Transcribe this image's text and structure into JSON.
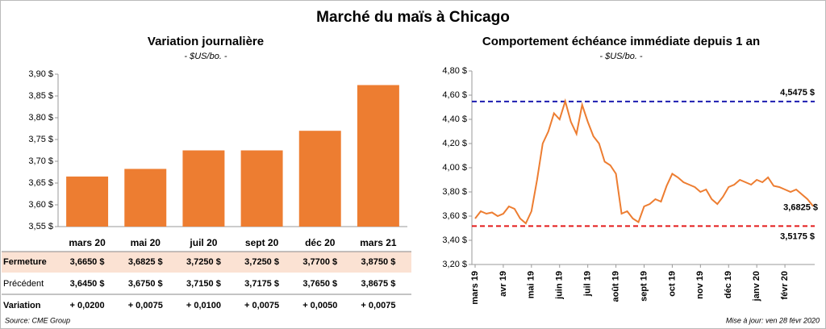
{
  "title": "Marché du maïs à Chicago",
  "chart_data": [
    {
      "type": "bar",
      "title": "Variation journalière",
      "subtitle": "- $US/bo. -",
      "categories": [
        "mars 20",
        "mai 20",
        "juil 20",
        "sept 20",
        "déc 20",
        "mars 21"
      ],
      "values": [
        3.665,
        3.6825,
        3.725,
        3.725,
        3.77,
        3.875
      ],
      "color": "#ed7d31",
      "ylim": [
        3.55,
        3.9
      ],
      "yticks": [
        {
          "value": 3.55,
          "label": "3,55 $"
        },
        {
          "value": 3.6,
          "label": "3,60 $"
        },
        {
          "value": 3.65,
          "label": "3,65 $"
        },
        {
          "value": 3.7,
          "label": "3,70 $"
        },
        {
          "value": 3.75,
          "label": "3,75 $"
        },
        {
          "value": 3.8,
          "label": "3,80 $"
        },
        {
          "value": 3.85,
          "label": "3,85 $"
        },
        {
          "value": 3.9,
          "label": "3,90 $"
        }
      ]
    },
    {
      "type": "line",
      "title": "Comportement  échéance immédiate depuis 1 an",
      "subtitle": "- $US/bo. -",
      "categories": [
        "mars 19",
        null,
        null,
        null,
        null,
        "avr 19",
        null,
        null,
        null,
        null,
        "mai 19",
        null,
        null,
        null,
        null,
        "juin 19",
        null,
        null,
        null,
        null,
        "juil 19",
        null,
        null,
        null,
        null,
        "août 19",
        null,
        null,
        null,
        null,
        "sept 19",
        null,
        null,
        null,
        null,
        "oct 19",
        null,
        null,
        null,
        null,
        "nov 19",
        null,
        null,
        null,
        null,
        "déc 19",
        null,
        null,
        null,
        null,
        "janv 20",
        null,
        null,
        null,
        null,
        "févr 20",
        null,
        null,
        null,
        null,
        null
      ],
      "values": [
        3.58,
        3.64,
        3.62,
        3.63,
        3.6,
        3.62,
        3.68,
        3.66,
        3.58,
        3.54,
        3.64,
        3.9,
        4.2,
        4.3,
        4.45,
        4.4,
        4.55,
        4.38,
        4.28,
        4.52,
        4.38,
        4.26,
        4.2,
        4.05,
        4.02,
        3.95,
        3.62,
        3.64,
        3.58,
        3.55,
        3.68,
        3.7,
        3.74,
        3.72,
        3.85,
        3.95,
        3.92,
        3.88,
        3.86,
        3.84,
        3.8,
        3.82,
        3.74,
        3.7,
        3.76,
        3.84,
        3.86,
        3.9,
        3.88,
        3.86,
        3.9,
        3.88,
        3.92,
        3.85,
        3.84,
        3.82,
        3.8,
        3.82,
        3.78,
        3.74,
        3.6825
      ],
      "last_label": "3,6825 $",
      "color": "#ed7d31",
      "ylim": [
        3.2,
        4.8
      ],
      "yticks": [
        {
          "value": 3.2,
          "label": "3,20 $"
        },
        {
          "value": 3.4,
          "label": "3,40 $"
        },
        {
          "value": 3.6,
          "label": "3,60 $"
        },
        {
          "value": 3.8,
          "label": "3,80 $"
        },
        {
          "value": 4.0,
          "label": "4,00 $"
        },
        {
          "value": 4.2,
          "label": "4,20 $"
        },
        {
          "value": 4.4,
          "label": "4,40 $"
        },
        {
          "value": 4.6,
          "label": "4,60 $"
        },
        {
          "value": 4.8,
          "label": "4,80 $"
        }
      ],
      "reference_lines": [
        {
          "value": 4.5475,
          "label": "4,5475 $",
          "color": "#1c1cb0"
        },
        {
          "value": 3.5175,
          "label": "3,5175 $",
          "color": "#e31b1b"
        }
      ]
    }
  ],
  "table": {
    "rows": [
      [
        "Fermeture",
        "3,6650  $",
        "3,6825  $",
        "3,7250  $",
        "3,7250  $",
        "3,7700  $",
        "3,8750  $"
      ],
      [
        "Précédent",
        "3,6450  $",
        "3,6750  $",
        "3,7150  $",
        "3,7175  $",
        "3,7650  $",
        "3,8675  $"
      ],
      [
        "Variation",
        "+ 0,0200",
        "+ 0,0075",
        "+ 0,0100",
        "+ 0,0075",
        "+ 0,0050",
        "+ 0,0075"
      ]
    ]
  },
  "source": "Source: CME Group",
  "updated": "Mise à jour: ven 28 févr 2020"
}
